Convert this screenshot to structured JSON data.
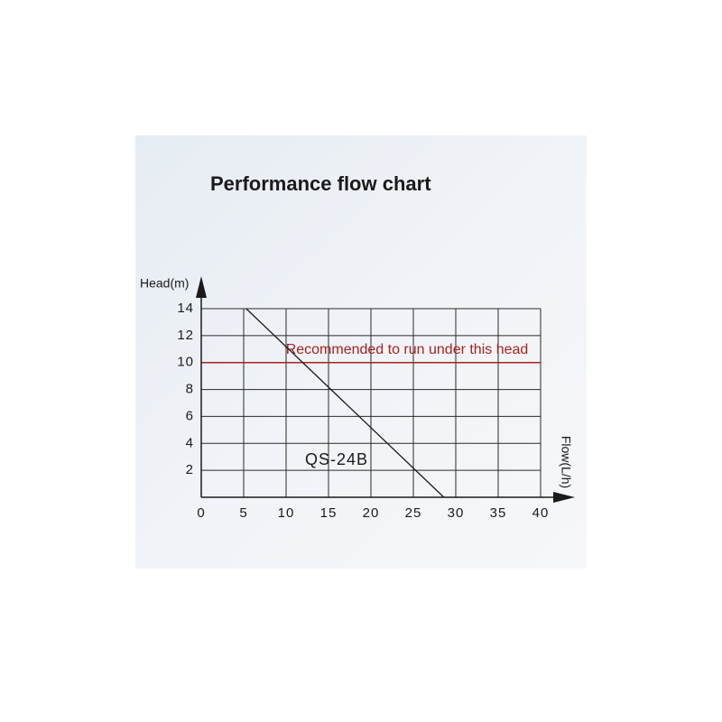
{
  "chart_data": {
    "type": "line",
    "title": "Performance flow chart",
    "y_label": "Head(m)",
    "x_label": "Flow(L/h)",
    "xlim": [
      0,
      40
    ],
    "xticks": [
      0,
      5,
      10,
      15,
      20,
      25,
      30,
      35,
      40
    ],
    "ylim": [
      0,
      14
    ],
    "yticks": [
      2,
      4,
      6,
      8,
      10,
      12,
      14
    ],
    "grid": true,
    "series": [
      {
        "name": "QS-24B",
        "color": "#1a1a1a",
        "x": [
          5.3,
          28.6
        ],
        "values": [
          14,
          0
        ]
      }
    ],
    "reference_line": {
      "value": 10,
      "label": "Recommended to run under this head",
      "color": "#a8231e"
    }
  }
}
